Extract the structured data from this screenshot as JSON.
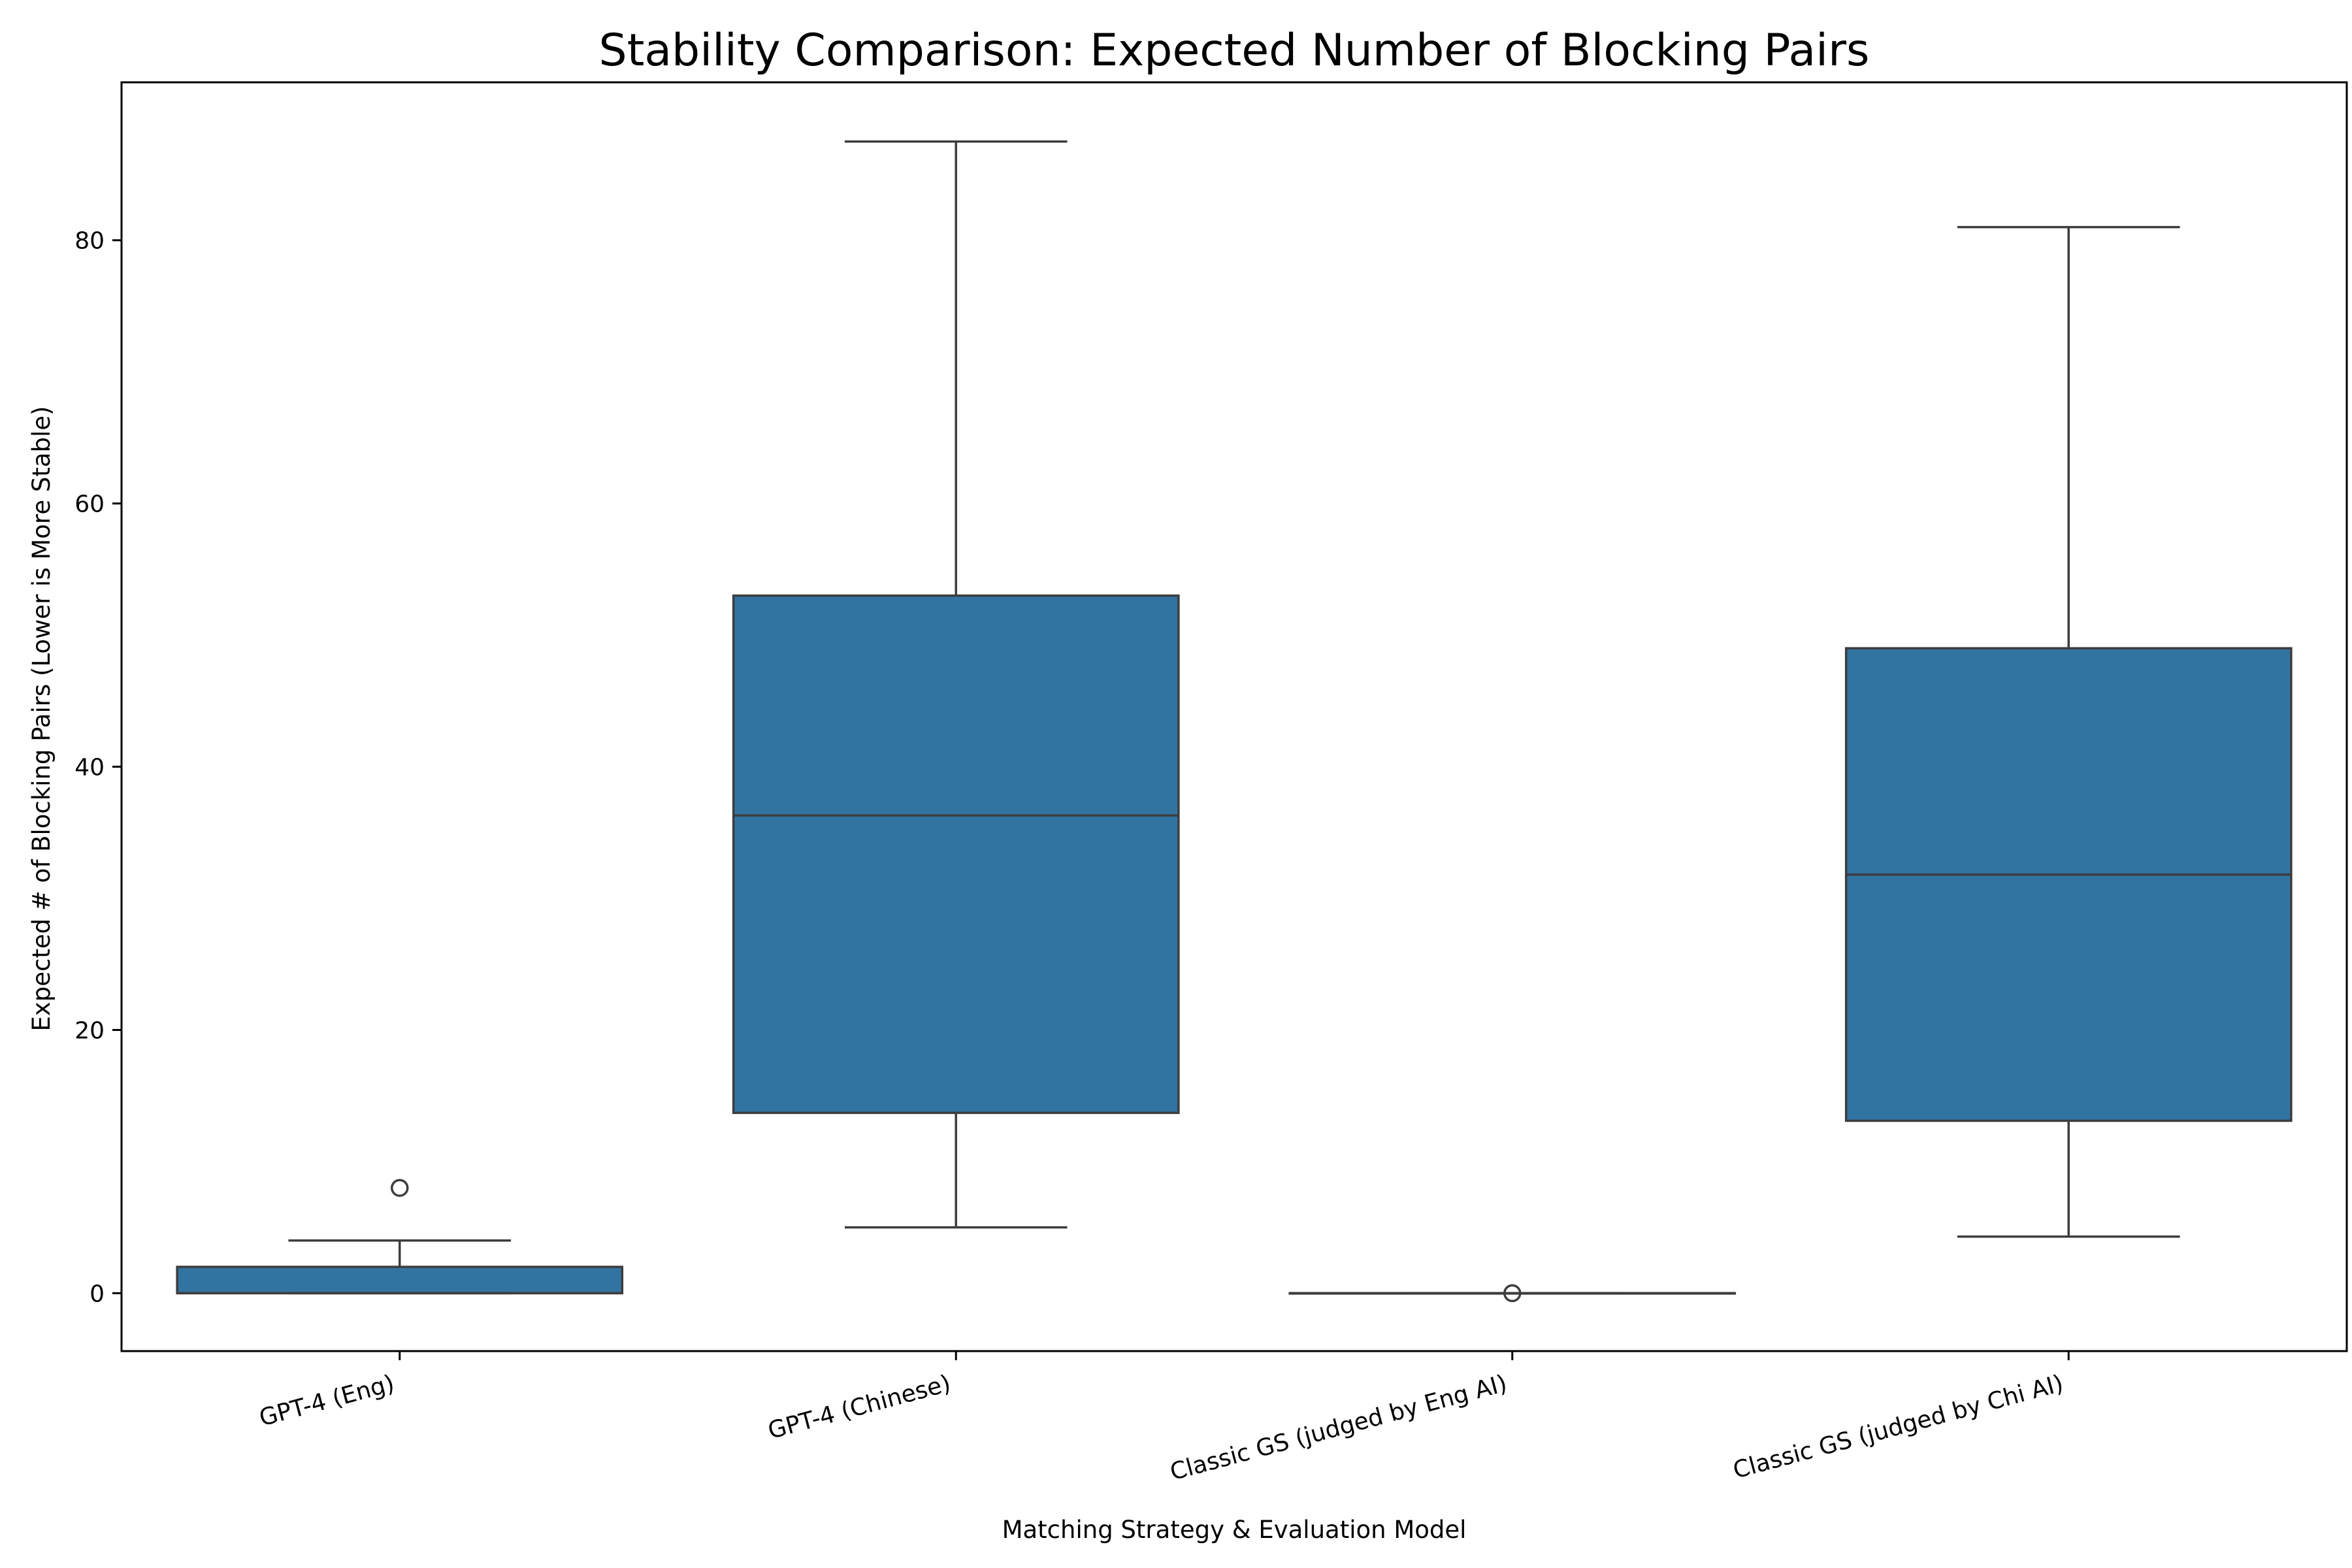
{
  "chart_data": {
    "type": "box",
    "title": "Stability Comparison: Expected Number of Blocking Pairs",
    "xlabel": "Matching Strategy & Evaluation Model",
    "ylabel": "Expected # of Blocking Pairs (Lower is More Stable)",
    "ylim": [
      -4.4,
      92
    ],
    "yticks": [
      0,
      20,
      40,
      60,
      80
    ],
    "grid": false,
    "legend": "none",
    "box_color": "#3274a1",
    "line_color": "#3d3d3d",
    "categories": [
      "GPT-4 (Eng)",
      "GPT-4 (Chinese)",
      "Classic GS (judged by Eng AI)",
      "Classic GS (judged by Chi AI)"
    ],
    "boxes": [
      {
        "category": "GPT-4 (Eng)",
        "whisker_low": 0,
        "q1": 0,
        "median": 0,
        "q3": 2,
        "whisker_high": 4,
        "outliers": [
          8
        ]
      },
      {
        "category": "GPT-4 (Chinese)",
        "whisker_low": 5,
        "q1": 13.7,
        "median": 36.3,
        "q3": 53,
        "whisker_high": 87.5,
        "outliers": []
      },
      {
        "category": "Classic GS (judged by Eng AI)",
        "whisker_low": 0,
        "q1": 0,
        "median": 0,
        "q3": 0,
        "whisker_high": 0,
        "outliers": [
          0
        ]
      },
      {
        "category": "Classic GS (judged by Chi AI)",
        "whisker_low": 4.3,
        "q1": 13.1,
        "median": 31.8,
        "q3": 49,
        "whisker_high": 81,
        "outliers": []
      }
    ]
  }
}
